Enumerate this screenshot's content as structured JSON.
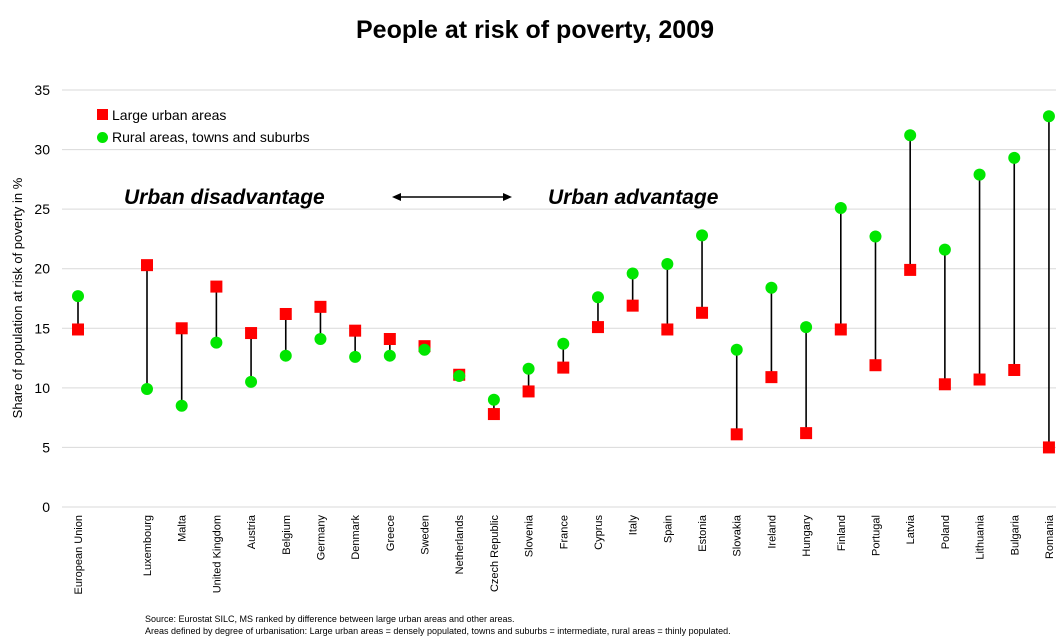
{
  "chart_data": {
    "type": "scatter",
    "title": "People at risk of poverty, 2009",
    "ylabel": "Share of population at risk of poverty in %",
    "xlabel": "",
    "ylim": [
      0,
      35
    ],
    "yticks": [
      0,
      5,
      10,
      15,
      20,
      25,
      30,
      35
    ],
    "grid": true,
    "legend_position": "top-left",
    "categories": [
      "European Union",
      "Luxembourg",
      "Malta",
      "United Kingdom",
      "Austria",
      "Belgium",
      "Germany",
      "Denmark",
      "Greece",
      "Sweden",
      "Netherlands",
      "Czech Republic",
      "Slovenia",
      "France",
      "Cyprus",
      "Italy",
      "Spain",
      "Estonia",
      "Slovakia",
      "Ireland",
      "Hungary",
      "Finland",
      "Portugal",
      "Latvia",
      "Poland",
      "Lithuania",
      "Bulgaria",
      "Romania"
    ],
    "series": [
      {
        "name": "Large urban areas",
        "marker": "square",
        "color": "#ff0000",
        "values": [
          14.9,
          20.3,
          15.0,
          18.5,
          14.6,
          16.2,
          16.8,
          14.8,
          14.1,
          13.5,
          11.1,
          7.8,
          9.7,
          11.7,
          15.1,
          16.9,
          14.9,
          16.3,
          6.1,
          10.9,
          6.2,
          14.9,
          11.9,
          19.9,
          10.3,
          10.7,
          11.5,
          5.0
        ]
      },
      {
        "name": "Rural areas, towns and suburbs",
        "marker": "circle",
        "color": "#00e600",
        "values": [
          17.7,
          9.9,
          8.5,
          13.8,
          10.5,
          12.7,
          14.1,
          12.6,
          12.7,
          13.2,
          11.0,
          9.0,
          11.6,
          13.7,
          17.6,
          19.6,
          20.4,
          22.8,
          13.2,
          18.4,
          15.1,
          25.1,
          22.7,
          31.2,
          21.6,
          27.9,
          29.3,
          32.8
        ]
      }
    ],
    "annotations": {
      "left": "Urban disadvantage",
      "right": "Urban advantage"
    },
    "source_lines": [
      "Source: Eurostat SILC, MS ranked by difference between large urban areas and other areas.",
      "Areas defined by degree of urbanisation: Large urban areas = densely populated, towns and suburbs = intermediate, rural areas = thinly populated."
    ]
  }
}
